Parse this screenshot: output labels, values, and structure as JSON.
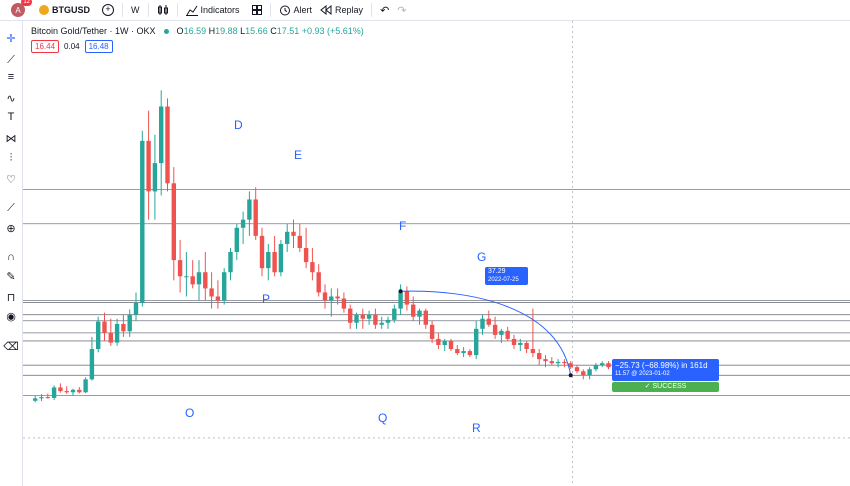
{
  "toolbar": {
    "avatar_letter": "A",
    "notif_count": "12",
    "symbol": "BTGUSD",
    "interval": "W",
    "indicators_label": "Indicators",
    "alert_label": "Alert",
    "replay_label": "Replay"
  },
  "legend": {
    "title": "Bitcoin Gold/Tether · 1W · OKX",
    "open_label": "O",
    "open": "16.59",
    "high_label": "H",
    "high": "19.88",
    "low_label": "L",
    "low": "15.66",
    "close_label": "C",
    "close": "17.51",
    "change": "+0.93 (+5.61%)",
    "sell_price": "16.44",
    "spread": "0.04",
    "buy_price": "16.48"
  },
  "annotations": {
    "D": "D",
    "E": "E",
    "F": "F",
    "G": "G",
    "P": "P",
    "O": "O",
    "Q": "Q",
    "R": "R"
  },
  "measure": {
    "start_price": "37.29",
    "start_date": "2022-07-25",
    "change_text": "−25.73 (−68.98%) in 161d",
    "end_text": "11.57 @ 2023-01-02",
    "result": "✓ SUCCESS"
  },
  "colors": {
    "up": "#26a69a",
    "down": "#ef5350",
    "accent": "#2962ff",
    "success": "#4caf50"
  },
  "chart_data": {
    "type": "candlestick",
    "title": "Bitcoin Gold/Tether · 1W · OKX",
    "price_range": [
      0,
      95
    ],
    "candles": [
      {
        "o": 10.2,
        "h": 11.5,
        "l": 9.8,
        "c": 10.8
      },
      {
        "o": 10.8,
        "h": 11.8,
        "l": 10.1,
        "c": 11.1
      },
      {
        "o": 11.1,
        "h": 12.0,
        "l": 10.7,
        "c": 10.9
      },
      {
        "o": 10.9,
        "h": 14.0,
        "l": 10.4,
        "c": 13.5
      },
      {
        "o": 13.5,
        "h": 14.5,
        "l": 12.2,
        "c": 12.6
      },
      {
        "o": 12.6,
        "h": 13.8,
        "l": 11.9,
        "c": 12.3
      },
      {
        "o": 12.3,
        "h": 13.2,
        "l": 11.5,
        "c": 12.9
      },
      {
        "o": 12.9,
        "h": 13.6,
        "l": 12.0,
        "c": 12.3
      },
      {
        "o": 12.3,
        "h": 16.0,
        "l": 12.1,
        "c": 15.5
      },
      {
        "o": 15.5,
        "h": 26.0,
        "l": 15.2,
        "c": 23.0
      },
      {
        "o": 23.0,
        "h": 31.0,
        "l": 22.2,
        "c": 29.8
      },
      {
        "o": 29.8,
        "h": 32.0,
        "l": 25.0,
        "c": 27.0
      },
      {
        "o": 27.0,
        "h": 30.5,
        "l": 23.8,
        "c": 24.6
      },
      {
        "o": 24.6,
        "h": 30.5,
        "l": 23.8,
        "c": 29.2
      },
      {
        "o": 29.2,
        "h": 31.5,
        "l": 26.0,
        "c": 27.4
      },
      {
        "o": 27.4,
        "h": 32.8,
        "l": 26.0,
        "c": 31.5
      },
      {
        "o": 31.5,
        "h": 37.0,
        "l": 30.0,
        "c": 34.5
      },
      {
        "o": 34.5,
        "h": 77.0,
        "l": 33.5,
        "c": 74.5
      },
      {
        "o": 74.5,
        "h": 82.0,
        "l": 55.0,
        "c": 62.0
      },
      {
        "o": 62.0,
        "h": 76.0,
        "l": 55.0,
        "c": 69.0
      },
      {
        "o": 69.0,
        "h": 87.0,
        "l": 61.0,
        "c": 83.0
      },
      {
        "o": 83.0,
        "h": 85.0,
        "l": 62.0,
        "c": 64.0
      },
      {
        "o": 64.0,
        "h": 68.0,
        "l": 40.0,
        "c": 45.0
      },
      {
        "o": 45.0,
        "h": 50.0,
        "l": 37.0,
        "c": 41.0
      },
      {
        "o": 41.0,
        "h": 47.0,
        "l": 36.0,
        "c": 41.0
      },
      {
        "o": 41.0,
        "h": 45.0,
        "l": 38.0,
        "c": 39.0
      },
      {
        "o": 39.0,
        "h": 45.0,
        "l": 35.0,
        "c": 42.0
      },
      {
        "o": 42.0,
        "h": 47.0,
        "l": 35.0,
        "c": 38.0
      },
      {
        "o": 38.0,
        "h": 42.0,
        "l": 33.0,
        "c": 36.0
      },
      {
        "o": 36.0,
        "h": 40.0,
        "l": 33.0,
        "c": 35.0
      },
      {
        "o": 35.0,
        "h": 43.0,
        "l": 34.0,
        "c": 42.0
      },
      {
        "o": 42.0,
        "h": 48.0,
        "l": 40.0,
        "c": 47.0
      },
      {
        "o": 47.0,
        "h": 54.0,
        "l": 45.0,
        "c": 53.0
      },
      {
        "o": 53.0,
        "h": 57.0,
        "l": 49.0,
        "c": 55.0
      },
      {
        "o": 55.0,
        "h": 62.0,
        "l": 51.0,
        "c": 60.0
      },
      {
        "o": 60.0,
        "h": 63.0,
        "l": 50.0,
        "c": 51.0
      },
      {
        "o": 51.0,
        "h": 53.0,
        "l": 41.0,
        "c": 43.0
      },
      {
        "o": 43.0,
        "h": 49.0,
        "l": 40.0,
        "c": 47.0
      },
      {
        "o": 47.0,
        "h": 51.0,
        "l": 41.0,
        "c": 42.0
      },
      {
        "o": 42.0,
        "h": 50.0,
        "l": 41.0,
        "c": 49.0
      },
      {
        "o": 49.0,
        "h": 54.0,
        "l": 47.0,
        "c": 52.0
      },
      {
        "o": 52.0,
        "h": 55.0,
        "l": 48.0,
        "c": 51.0
      },
      {
        "o": 51.0,
        "h": 54.0,
        "l": 47.0,
        "c": 48.0
      },
      {
        "o": 48.0,
        "h": 53.0,
        "l": 43.0,
        "c": 44.5
      },
      {
        "o": 44.5,
        "h": 48.0,
        "l": 40.0,
        "c": 42.0
      },
      {
        "o": 42.0,
        "h": 44.0,
        "l": 36.0,
        "c": 37.0
      },
      {
        "o": 37.0,
        "h": 39.0,
        "l": 33.0,
        "c": 35.0
      },
      {
        "o": 35.0,
        "h": 38.0,
        "l": 31.0,
        "c": 36.0
      },
      {
        "o": 36.0,
        "h": 38.0,
        "l": 34.0,
        "c": 35.5
      },
      {
        "o": 35.5,
        "h": 37.0,
        "l": 32.0,
        "c": 33.0
      },
      {
        "o": 33.0,
        "h": 34.0,
        "l": 28.0,
        "c": 29.5
      },
      {
        "o": 29.5,
        "h": 32.0,
        "l": 28.0,
        "c": 31.5
      },
      {
        "o": 31.5,
        "h": 33.0,
        "l": 28.0,
        "c": 30.5
      },
      {
        "o": 30.5,
        "h": 32.5,
        "l": 29.0,
        "c": 31.5
      },
      {
        "o": 31.5,
        "h": 33.0,
        "l": 28.0,
        "c": 29.0
      },
      {
        "o": 29.0,
        "h": 31.0,
        "l": 28.0,
        "c": 29.5
      },
      {
        "o": 29.5,
        "h": 31.0,
        "l": 28.0,
        "c": 30.2
      },
      {
        "o": 30.2,
        "h": 34.0,
        "l": 29.5,
        "c": 33.0
      },
      {
        "o": 33.0,
        "h": 39.0,
        "l": 31.5,
        "c": 37.3
      },
      {
        "o": 37.3,
        "h": 38.5,
        "l": 32.5,
        "c": 34.0
      },
      {
        "o": 34.0,
        "h": 36.0,
        "l": 30.0,
        "c": 31.0
      },
      {
        "o": 31.0,
        "h": 33.0,
        "l": 29.0,
        "c": 32.5
      },
      {
        "o": 32.5,
        "h": 33.0,
        "l": 28.0,
        "c": 29.0
      },
      {
        "o": 29.0,
        "h": 30.0,
        "l": 24.5,
        "c": 25.5
      },
      {
        "o": 25.5,
        "h": 27.0,
        "l": 23.0,
        "c": 24.0
      },
      {
        "o": 24.0,
        "h": 25.5,
        "l": 22.5,
        "c": 25.0
      },
      {
        "o": 25.0,
        "h": 25.5,
        "l": 22.5,
        "c": 23.0
      },
      {
        "o": 23.0,
        "h": 24.0,
        "l": 21.5,
        "c": 22.0
      },
      {
        "o": 22.0,
        "h": 23.5,
        "l": 21.0,
        "c": 22.5
      },
      {
        "o": 22.5,
        "h": 23.0,
        "l": 21.0,
        "c": 21.5
      },
      {
        "o": 21.5,
        "h": 30.0,
        "l": 20.5,
        "c": 28.0
      },
      {
        "o": 28.0,
        "h": 31.5,
        "l": 26.5,
        "c": 30.5
      },
      {
        "o": 30.5,
        "h": 32.5,
        "l": 28.5,
        "c": 29.0
      },
      {
        "o": 29.0,
        "h": 31.0,
        "l": 25.5,
        "c": 26.5
      },
      {
        "o": 26.5,
        "h": 28.0,
        "l": 24.5,
        "c": 27.5
      },
      {
        "o": 27.5,
        "h": 28.5,
        "l": 25.0,
        "c": 25.5
      },
      {
        "o": 25.5,
        "h": 26.5,
        "l": 23.0,
        "c": 24.0
      },
      {
        "o": 24.0,
        "h": 25.5,
        "l": 22.5,
        "c": 24.5
      },
      {
        "o": 24.5,
        "h": 25.0,
        "l": 22.0,
        "c": 23.0
      },
      {
        "o": 23.0,
        "h": 33.0,
        "l": 21.0,
        "c": 22.0
      },
      {
        "o": 22.0,
        "h": 23.0,
        "l": 19.0,
        "c": 20.5
      },
      {
        "o": 20.5,
        "h": 21.5,
        "l": 18.5,
        "c": 20.0
      },
      {
        "o": 20.0,
        "h": 21.0,
        "l": 19.0,
        "c": 19.5
      },
      {
        "o": 19.5,
        "h": 20.5,
        "l": 18.5,
        "c": 19.8
      },
      {
        "o": 19.8,
        "h": 20.5,
        "l": 18.5,
        "c": 19.5
      },
      {
        "o": 19.5,
        "h": 20.0,
        "l": 18.0,
        "c": 18.5
      },
      {
        "o": 18.5,
        "h": 19.0,
        "l": 17.0,
        "c": 17.5
      },
      {
        "o": 17.5,
        "h": 18.0,
        "l": 15.5,
        "c": 16.5
      },
      {
        "o": 16.5,
        "h": 18.5,
        "l": 15.5,
        "c": 18.0
      },
      {
        "o": 18.0,
        "h": 19.5,
        "l": 17.5,
        "c": 19.0
      },
      {
        "o": 19.0,
        "h": 20.0,
        "l": 18.5,
        "c": 19.5
      },
      {
        "o": 19.5,
        "h": 20.0,
        "l": 18.0,
        "c": 18.5
      }
    ],
    "horizontal_levels": [
      11.5,
      16.5,
      19.0,
      25.0,
      27.0,
      30.0,
      31.5,
      34.5,
      35.0,
      54.0,
      62.5
    ],
    "dashed_level": 1.0,
    "vertical_marker_index": 85
  }
}
